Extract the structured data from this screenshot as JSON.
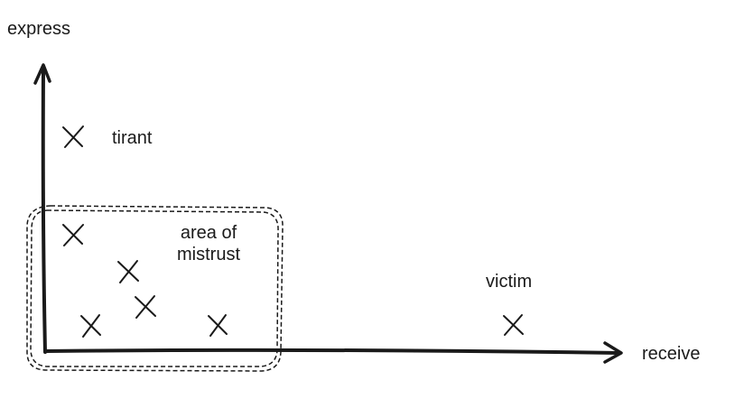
{
  "axes": {
    "y_label": "express",
    "x_label": "receive"
  },
  "region": {
    "label_line1": "area of",
    "label_line2": "mistrust"
  },
  "labels": {
    "tirant": "tirant",
    "victim": "victim"
  },
  "markers": [
    {
      "id": "tirant",
      "marker": "x-mark",
      "labeled": true
    },
    {
      "id": "mistrust-point-1",
      "marker": "x-mark",
      "labeled": false
    },
    {
      "id": "mistrust-point-2",
      "marker": "x-mark",
      "labeled": false
    },
    {
      "id": "mistrust-point-3",
      "marker": "x-mark",
      "labeled": false
    },
    {
      "id": "mistrust-point-4",
      "marker": "x-mark",
      "labeled": false
    },
    {
      "id": "mistrust-point-5",
      "marker": "x-mark",
      "labeled": false
    },
    {
      "id": "victim",
      "marker": "x-mark",
      "labeled": true
    }
  ],
  "colors": {
    "ink": "#1a1a1a",
    "background": "#ffffff"
  }
}
